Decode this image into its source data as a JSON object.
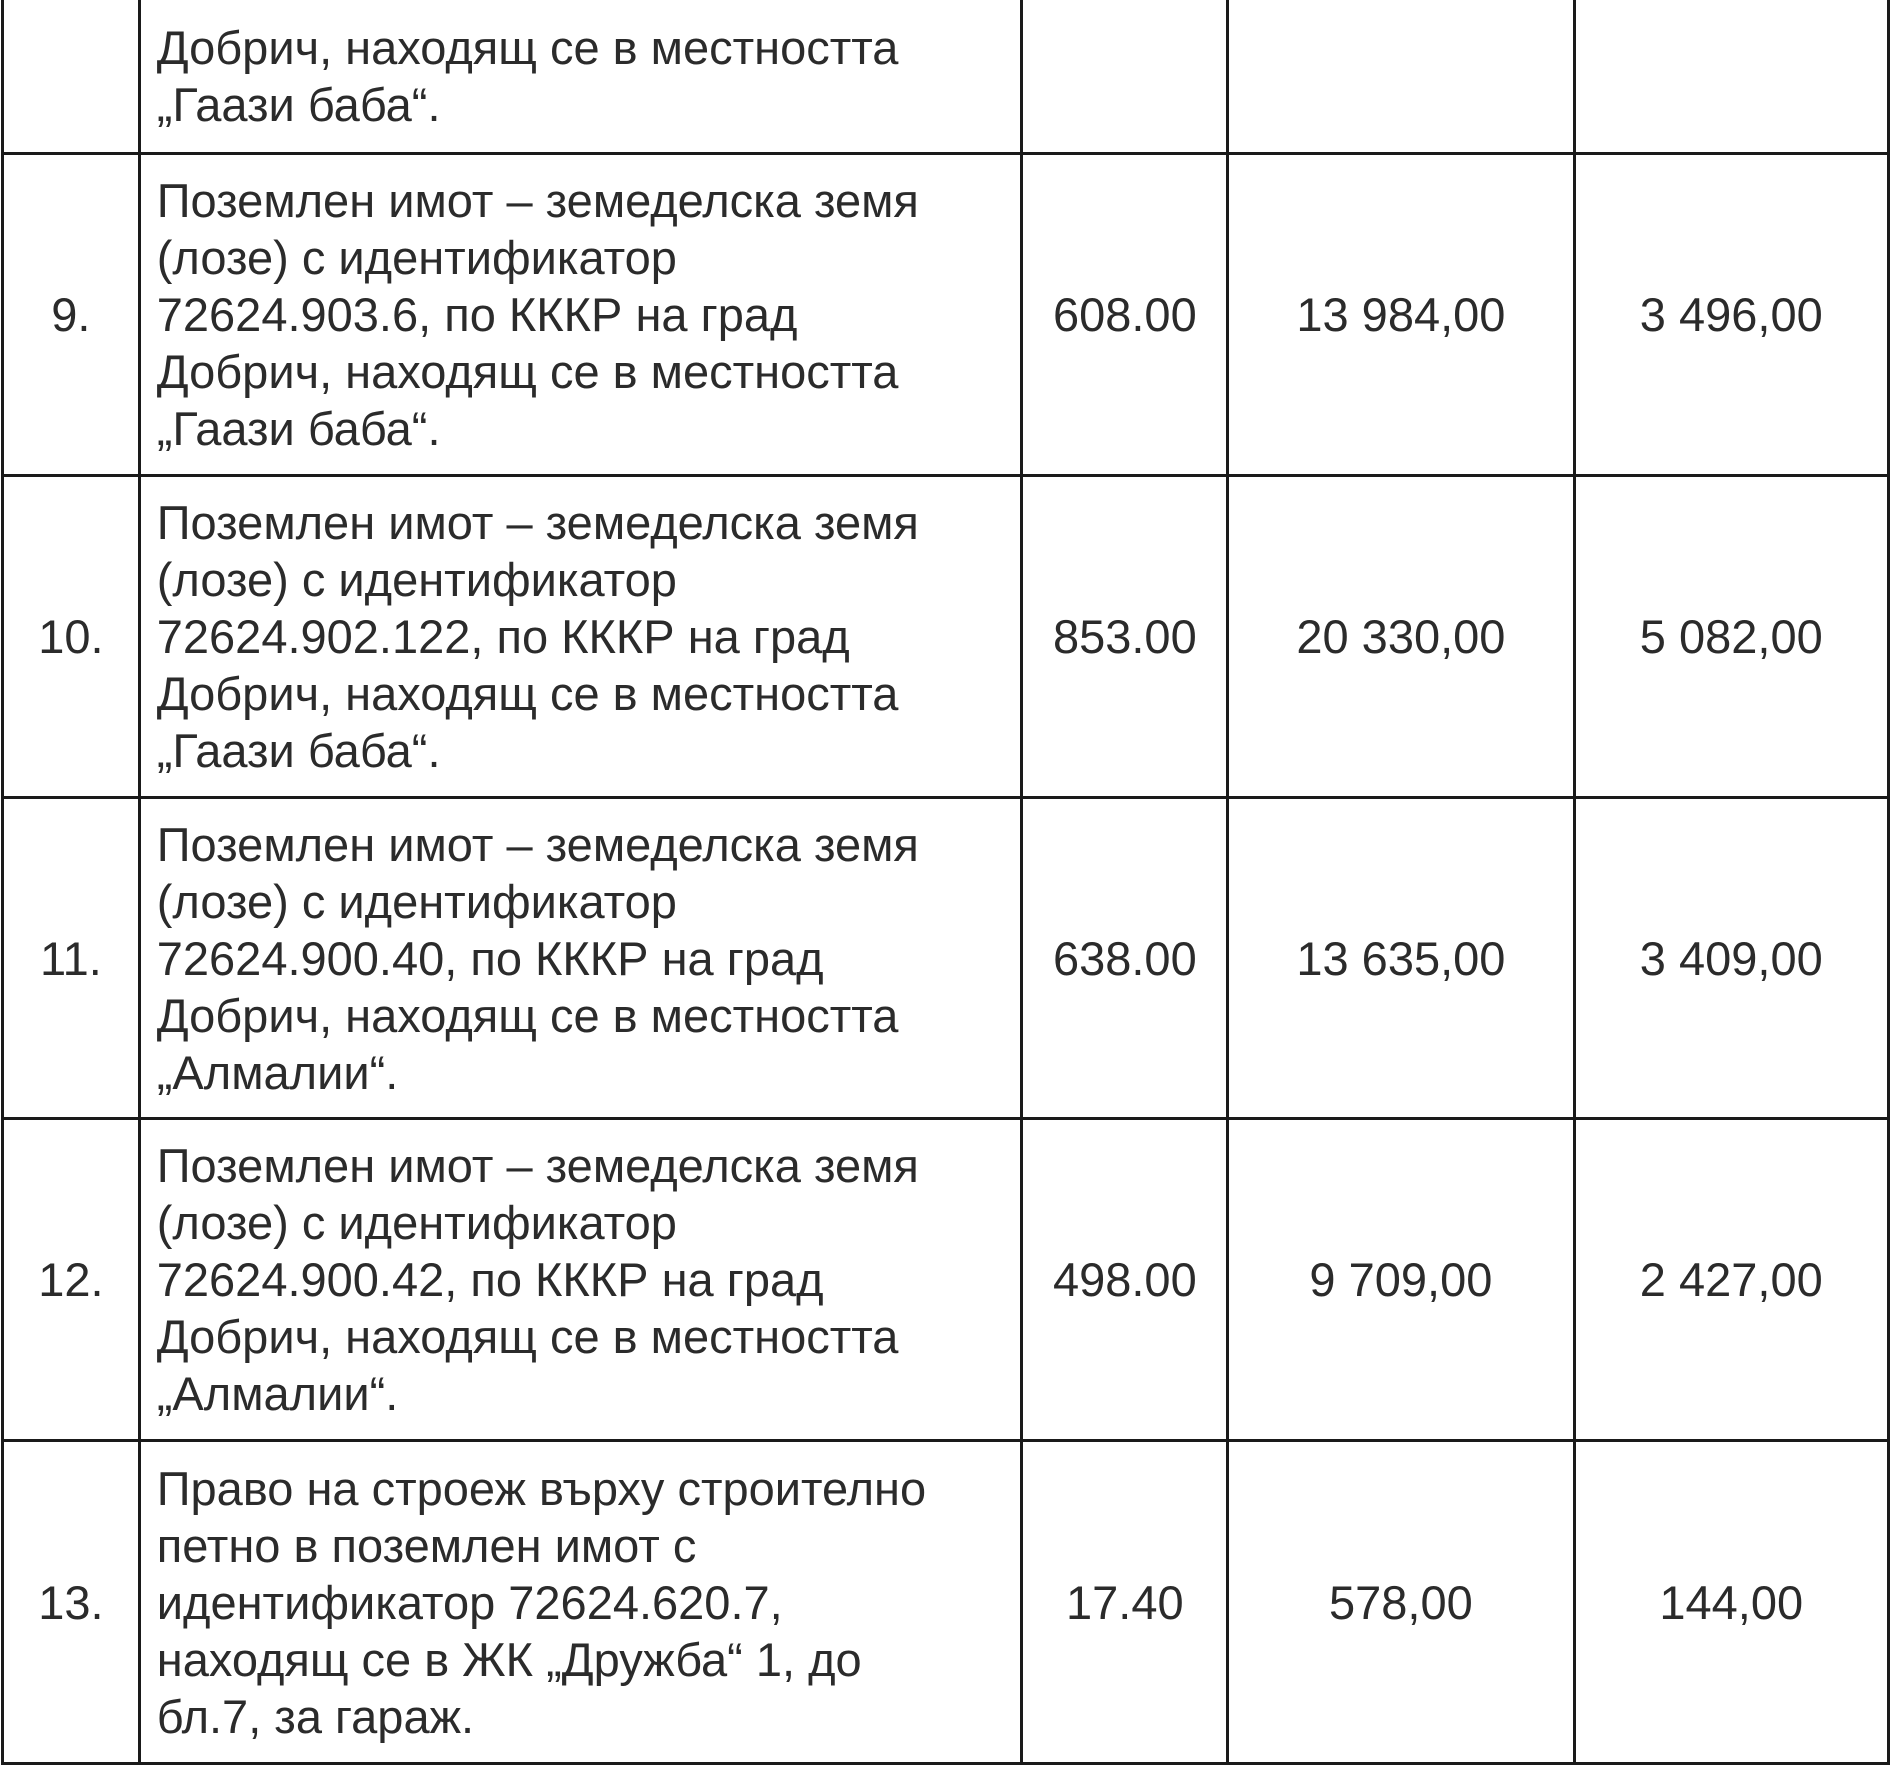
{
  "rows": [
    {
      "no": "",
      "lines": [
        "Добрич, находящ се в местността",
        "„Гаази баба“."
      ],
      "area": "",
      "value1": "",
      "value2": ""
    },
    {
      "no": "9.",
      "lines": [
        "Поземлен имот – земеделска земя",
        "(лозе) с идентификатор",
        "72624.903.6, по КККР на град",
        "Добрич, находящ се в местността",
        "„Гаази баба“."
      ],
      "area": "608.00",
      "value1": "13 984,00",
      "value2": "3 496,00"
    },
    {
      "no": "10.",
      "lines": [
        "Поземлен имот – земеделска земя",
        "(лозе) с идентификатор",
        "72624.902.122, по КККР на град",
        "Добрич, находящ се в местността",
        "„Гаази баба“."
      ],
      "area": "853.00",
      "value1": "20 330,00",
      "value2": "5 082,00"
    },
    {
      "no": "11.",
      "lines": [
        "Поземлен имот – земеделска земя",
        "(лозе) с идентификатор",
        "72624.900.40, по КККР на град",
        "Добрич, находящ се в местността",
        "„Алмалии“."
      ],
      "area": "638.00",
      "value1": "13 635,00",
      "value2": "3 409,00"
    },
    {
      "no": "12.",
      "lines": [
        "Поземлен имот – земеделска земя",
        "(лозе) с идентификатор",
        "72624.900.42, по КККР на град",
        "Добрич, находящ се в местността",
        "„Алмалии“."
      ],
      "area": "498.00",
      "value1": "9 709,00",
      "value2": "2 427,00"
    },
    {
      "no": "13.",
      "lines": [
        "Право на строеж върху строително",
        "петно в поземлен имот с",
        "идентификатор 72624.620.7,",
        "находящ се в ЖК „Дружба“ 1, до",
        "бл.7, за гараж."
      ],
      "area": "17.40",
      "value1": "578,00",
      "value2": "144,00"
    }
  ]
}
